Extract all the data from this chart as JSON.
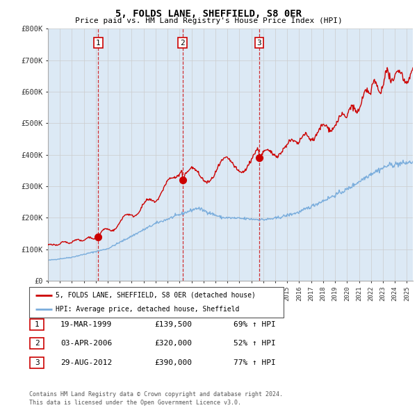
{
  "title": "5, FOLDS LANE, SHEFFIELD, S8 0ER",
  "subtitle": "Price paid vs. HM Land Registry's House Price Index (HPI)",
  "transactions": [
    {
      "num": 1,
      "date": "19-MAR-1999",
      "price": 139500,
      "year": 1999.21,
      "pct": "69%",
      "dir": "↑"
    },
    {
      "num": 2,
      "date": "03-APR-2006",
      "price": 320000,
      "year": 2006.25,
      "pct": "52%",
      "dir": "↑"
    },
    {
      "num": 3,
      "date": "29-AUG-2012",
      "price": 390000,
      "year": 2012.66,
      "pct": "77%",
      "dir": "↑"
    }
  ],
  "legend_entries": [
    "5, FOLDS LANE, SHEFFIELD, S8 0ER (detached house)",
    "HPI: Average price, detached house, Sheffield"
  ],
  "table_rows": [
    [
      "1",
      "19-MAR-1999",
      "£139,500",
      "69% ↑ HPI"
    ],
    [
      "2",
      "03-APR-2006",
      "£320,000",
      "52% ↑ HPI"
    ],
    [
      "3",
      "29-AUG-2012",
      "£390,000",
      "77% ↑ HPI"
    ]
  ],
  "footnote1": "Contains HM Land Registry data © Crown copyright and database right 2024.",
  "footnote2": "This data is licensed under the Open Government Licence v3.0.",
  "red_color": "#cc0000",
  "blue_color": "#7aaddc",
  "grid_color": "#cccccc",
  "background_color": "#ffffff",
  "chart_bg_color": "#dce9f5",
  "ylim": [
    0,
    800000
  ],
  "xlim_start": 1995.0,
  "xlim_end": 2025.5
}
